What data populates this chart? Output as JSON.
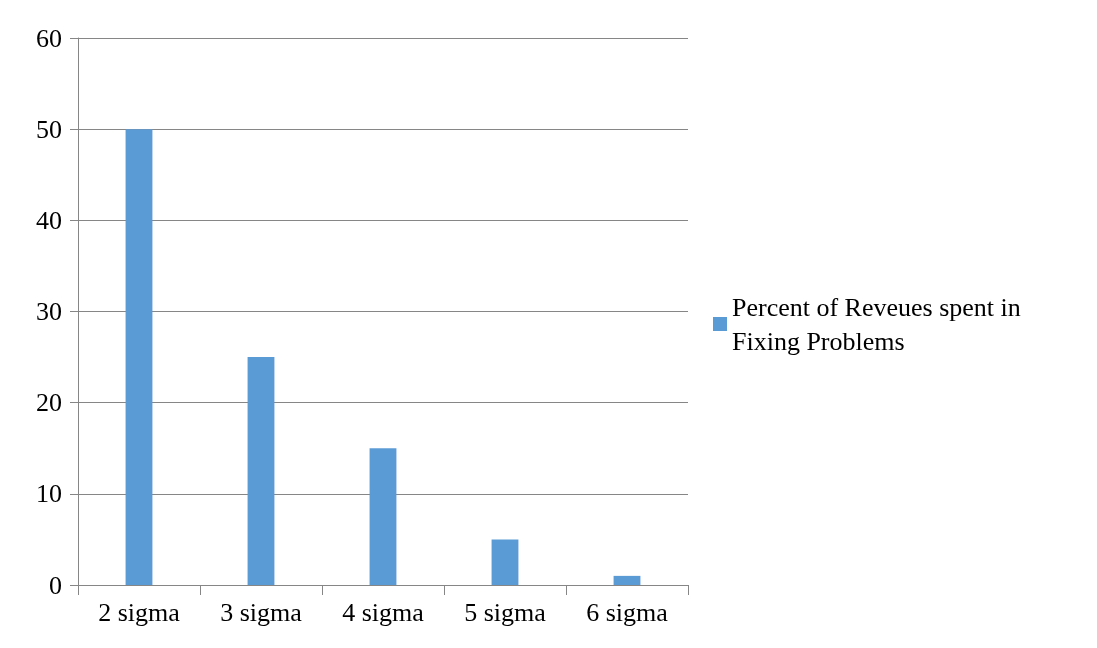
{
  "chart_data": {
    "type": "bar",
    "categories": [
      "2 sigma",
      "3 sigma",
      "4 sigma",
      "5 sigma",
      "6 sigma"
    ],
    "series": [
      {
        "name": "Percent of Reveues spent in Fixing Problems",
        "color": "#5b9bd5",
        "values": [
          50,
          25,
          15,
          5,
          1
        ]
      }
    ],
    "ylim": [
      0,
      60
    ],
    "yticks": [
      0,
      10,
      20,
      30,
      40,
      50,
      60
    ],
    "grid": "y",
    "legend": "right"
  }
}
